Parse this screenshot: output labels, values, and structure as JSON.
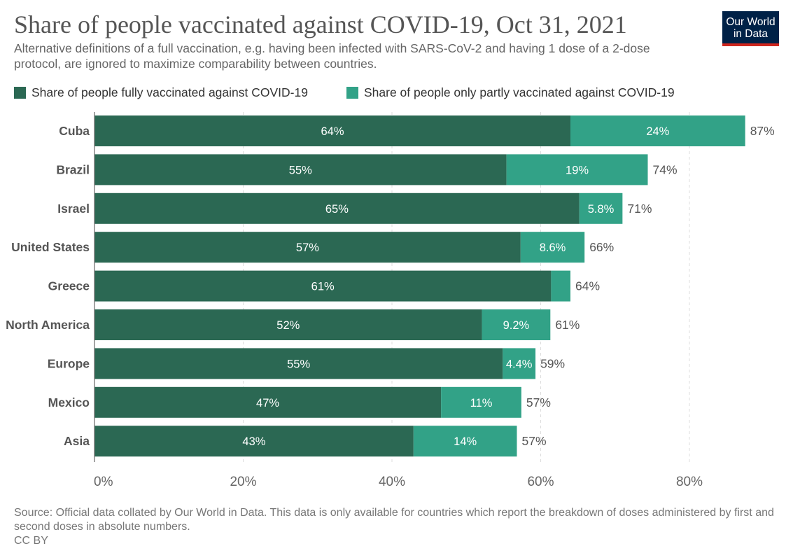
{
  "header": {
    "title": "Share of people vaccinated against COVID-19, Oct 31, 2021",
    "subtitle": "Alternative definitions of a full vaccination, e.g. having been infected with SARS-CoV-2 and having 1 dose of a 2-dose protocol, are ignored to maximize comparability between countries."
  },
  "logo": {
    "line1": "Our World",
    "line2": "in Data"
  },
  "colors": {
    "full": "#2b6853",
    "partial": "#32a287",
    "grid": "#dddddd",
    "axis": "#666666"
  },
  "chart_data": {
    "type": "bar",
    "orientation": "horizontal",
    "stacked": true,
    "categories": [
      "Cuba",
      "Brazil",
      "Israel",
      "United States",
      "Greece",
      "North America",
      "Europe",
      "Mexico",
      "Asia"
    ],
    "series": [
      {
        "name": "Share of people fully vaccinated against COVID-19",
        "values": [
          64,
          55.4,
          65.2,
          57.3,
          61.4,
          52.1,
          54.9,
          46.6,
          42.9
        ],
        "labels": [
          "64%",
          "55%",
          "65%",
          "57%",
          "61%",
          "52%",
          "55%",
          "47%",
          "43%"
        ]
      },
      {
        "name": "Share of people only partly vaccinated against COVID-19",
        "values": [
          23.5,
          19,
          5.8,
          8.6,
          2.6,
          9.2,
          4.4,
          10.8,
          13.9
        ],
        "labels": [
          "24%",
          "19%",
          "5.8%",
          "8.6%",
          "",
          "9.2%",
          "4.4%",
          "11%",
          "14%"
        ]
      }
    ],
    "totals": [
      "87%",
      "74%",
      "71%",
      "66%",
      "64%",
      "61%",
      "59%",
      "57%",
      "57%"
    ],
    "xticks": [
      0,
      20,
      40,
      60,
      80
    ],
    "xtick_labels": [
      "0%",
      "20%",
      "40%",
      "60%",
      "80%"
    ],
    "xlim": [
      0,
      87.5
    ]
  },
  "footer": {
    "source": "Source: Official data collated by Our World in Data. This data is only available for countries which report the breakdown of doses administered by first and second doses in absolute numbers.",
    "license": "CC BY"
  }
}
